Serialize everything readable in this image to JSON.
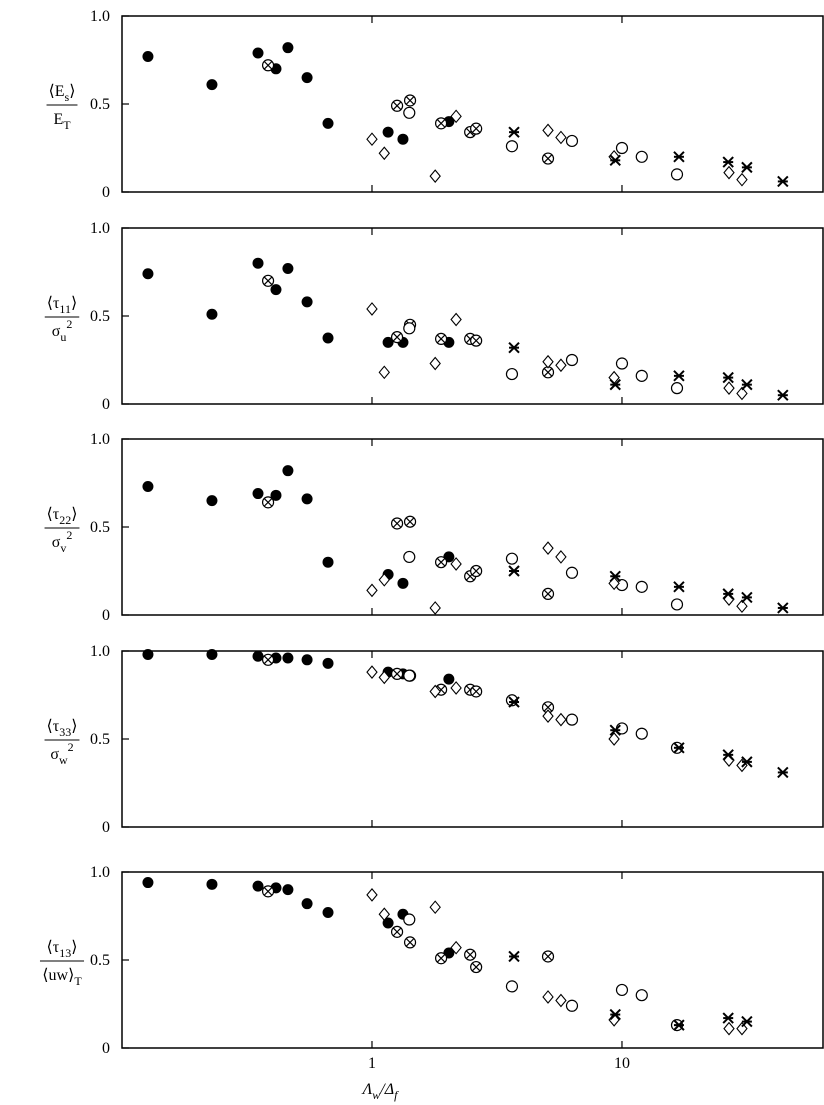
{
  "chart_data": [
    {
      "type": "scatter",
      "ylabel": {
        "numerator": [
          {
            "t": "⟨E"
          },
          {
            "t": "s",
            "sub": true
          },
          {
            "t": "⟩"
          }
        ],
        "denominator": [
          {
            "t": "E"
          },
          {
            "t": "T",
            "sub": true
          }
        ]
      },
      "xlim": [
        0.1,
        63.7
      ],
      "xscale": "log",
      "ylim": [
        0,
        1
      ],
      "yticks": [
        0,
        0.5,
        {
          "value": 1,
          "label": "1.0"
        }
      ],
      "series": [
        {
          "marker": "filled-circle",
          "color": "#000000",
          "x": [
            0.127,
            0.229,
            0.35,
            0.413,
            0.461,
            0.55,
            0.667,
            1.16,
            1.33,
            2.03
          ],
          "values": [
            0.77,
            0.61,
            0.79,
            0.7,
            0.82,
            0.65,
            0.39,
            0.34,
            0.3,
            0.4
          ]
        },
        {
          "marker": "cross-circle",
          "color": "#000000",
          "x": [
            0.384,
            1.26,
            1.42,
            1.89,
            2.47,
            2.61,
            5.06
          ],
          "values": [
            0.72,
            0.49,
            0.52,
            0.39,
            0.34,
            0.36,
            0.19
          ]
        },
        {
          "marker": "open-circle",
          "color": "#000000",
          "x": [
            1.41,
            3.63,
            6.31,
            10,
            12,
            16.6
          ],
          "values": [
            0.45,
            0.26,
            0.29,
            0.25,
            0.2,
            0.1
          ]
        },
        {
          "marker": "diamond",
          "color": "#000000",
          "x": [
            1.0,
            1.12,
            1.79,
            2.17,
            5.06,
            5.7,
            9.3,
            26.8,
            30.2
          ],
          "values": [
            0.3,
            0.22,
            0.09,
            0.43,
            0.35,
            0.31,
            0.2,
            0.11,
            0.07
          ]
        },
        {
          "marker": "star",
          "color": "#000000",
          "x": [
            3.7,
            9.4,
            16.9,
            26.6,
            31.6,
            44
          ],
          "values": [
            0.34,
            0.18,
            0.2,
            0.17,
            0.14,
            0.06
          ]
        }
      ]
    },
    {
      "type": "scatter",
      "ylabel": {
        "numerator": [
          {
            "t": "⟨τ"
          },
          {
            "t": "11",
            "sub": true
          },
          {
            "t": "⟩"
          }
        ],
        "denominator": [
          {
            "t": "σ"
          },
          {
            "t": "u",
            "sub": true
          },
          {
            "t": "2",
            "sup": true
          }
        ]
      },
      "xlim": [
        0.1,
        63.7
      ],
      "xscale": "log",
      "ylim": [
        0,
        1
      ],
      "yticks": [
        0,
        0.5,
        {
          "value": 1,
          "label": "1.0"
        }
      ],
      "series": [
        {
          "marker": "filled-circle",
          "color": "#000000",
          "x": [
            0.127,
            0.229,
            0.35,
            0.413,
            0.461,
            0.55,
            0.667,
            1.16,
            1.33,
            2.03
          ],
          "values": [
            0.74,
            0.51,
            0.8,
            0.65,
            0.77,
            0.58,
            0.375,
            0.35,
            0.35,
            0.35
          ]
        },
        {
          "marker": "cross-circle",
          "color": "#000000",
          "x": [
            0.384,
            1.26,
            1.42,
            1.89,
            2.47,
            2.61,
            5.06
          ],
          "values": [
            0.7,
            0.38,
            0.45,
            0.37,
            0.37,
            0.36,
            0.18
          ]
        },
        {
          "marker": "open-circle",
          "color": "#000000",
          "x": [
            1.41,
            3.63,
            6.31,
            10,
            12,
            16.6
          ],
          "values": [
            0.43,
            0.17,
            0.25,
            0.23,
            0.16,
            0.09
          ]
        },
        {
          "marker": "diamond",
          "color": "#000000",
          "x": [
            1.0,
            1.12,
            1.79,
            2.17,
            5.06,
            5.7,
            9.3,
            26.8,
            30.2
          ],
          "values": [
            0.54,
            0.18,
            0.23,
            0.48,
            0.24,
            0.22,
            0.15,
            0.09,
            0.06
          ]
        },
        {
          "marker": "star",
          "color": "#000000",
          "x": [
            3.7,
            9.4,
            16.9,
            26.6,
            31.6,
            44
          ],
          "values": [
            0.32,
            0.11,
            0.16,
            0.15,
            0.11,
            0.05
          ]
        }
      ]
    },
    {
      "type": "scatter",
      "ylabel": {
        "numerator": [
          {
            "t": "⟨τ"
          },
          {
            "t": "22",
            "sub": true
          },
          {
            "t": "⟩"
          }
        ],
        "denominator": [
          {
            "t": "σ"
          },
          {
            "t": "v",
            "sub": true
          },
          {
            "t": "2",
            "sup": true
          }
        ]
      },
      "xlim": [
        0.1,
        63.7
      ],
      "xscale": "log",
      "ylim": [
        0,
        1
      ],
      "yticks": [
        0,
        0.5,
        {
          "value": 1,
          "label": "1.0"
        }
      ],
      "series": [
        {
          "marker": "filled-circle",
          "color": "#000000",
          "x": [
            0.127,
            0.229,
            0.35,
            0.413,
            0.461,
            0.55,
            0.667,
            1.16,
            1.33,
            2.03
          ],
          "values": [
            0.73,
            0.65,
            0.69,
            0.68,
            0.82,
            0.66,
            0.3,
            0.23,
            0.18,
            0.33
          ]
        },
        {
          "marker": "cross-circle",
          "color": "#000000",
          "x": [
            0.384,
            1.26,
            1.42,
            1.89,
            2.47,
            2.61,
            5.06
          ],
          "values": [
            0.64,
            0.52,
            0.53,
            0.3,
            0.22,
            0.25,
            0.12
          ]
        },
        {
          "marker": "open-circle",
          "color": "#000000",
          "x": [
            1.41,
            3.63,
            6.31,
            10,
            12,
            16.6
          ],
          "values": [
            0.33,
            0.32,
            0.24,
            0.17,
            0.16,
            0.06
          ]
        },
        {
          "marker": "diamond",
          "color": "#000000",
          "x": [
            1.0,
            1.12,
            1.79,
            2.17,
            5.06,
            5.7,
            9.3,
            26.8,
            30.2
          ],
          "values": [
            0.14,
            0.2,
            0.04,
            0.29,
            0.38,
            0.33,
            0.18,
            0.09,
            0.05
          ]
        },
        {
          "marker": "star",
          "color": "#000000",
          "x": [
            3.7,
            9.4,
            16.9,
            26.6,
            31.6,
            44
          ],
          "values": [
            0.25,
            0.22,
            0.16,
            0.12,
            0.1,
            0.04
          ]
        }
      ]
    },
    {
      "type": "scatter",
      "ylabel": {
        "numerator": [
          {
            "t": "⟨τ"
          },
          {
            "t": "33",
            "sub": true
          },
          {
            "t": "⟩"
          }
        ],
        "denominator": [
          {
            "t": "σ"
          },
          {
            "t": "w",
            "sub": true
          },
          {
            "t": "2",
            "sup": true
          }
        ]
      },
      "xlim": [
        0.1,
        63.7
      ],
      "xscale": "log",
      "ylim": [
        0,
        1
      ],
      "yticks": [
        0,
        0.5,
        {
          "value": 1,
          "label": "1.0"
        }
      ],
      "series": [
        {
          "marker": "filled-circle",
          "color": "#000000",
          "x": [
            0.127,
            0.229,
            0.35,
            0.413,
            0.461,
            0.55,
            0.667,
            1.16,
            1.33,
            2.03
          ],
          "values": [
            0.98,
            0.98,
            0.97,
            0.96,
            0.96,
            0.95,
            0.93,
            0.88,
            0.87,
            0.84
          ]
        },
        {
          "marker": "cross-circle",
          "color": "#000000",
          "x": [
            0.384,
            1.26,
            1.42,
            1.89,
            2.47,
            2.61,
            5.06
          ],
          "values": [
            0.95,
            0.87,
            0.86,
            0.78,
            0.78,
            0.77,
            0.68
          ]
        },
        {
          "marker": "open-circle",
          "color": "#000000",
          "x": [
            1.41,
            3.63,
            6.31,
            10,
            12,
            16.6
          ],
          "values": [
            0.86,
            0.72,
            0.61,
            0.56,
            0.53,
            0.45
          ]
        },
        {
          "marker": "diamond",
          "color": "#000000",
          "x": [
            1.0,
            1.12,
            1.79,
            2.17,
            5.06,
            5.7,
            9.3,
            26.8,
            30.2
          ],
          "values": [
            0.88,
            0.85,
            0.77,
            0.79,
            0.63,
            0.61,
            0.5,
            0.38,
            0.35
          ]
        },
        {
          "marker": "star",
          "color": "#000000",
          "x": [
            3.7,
            9.4,
            16.9,
            26.6,
            31.6,
            44
          ],
          "values": [
            0.71,
            0.55,
            0.45,
            0.41,
            0.37,
            0.31
          ]
        }
      ]
    },
    {
      "type": "scatter",
      "ylabel": {
        "numerator": [
          {
            "t": "⟨τ"
          },
          {
            "t": "13",
            "sub": true
          },
          {
            "t": "⟩"
          }
        ],
        "denominator": [
          {
            "t": "⟨uw⟩"
          },
          {
            "t": "T",
            "sub": true
          }
        ]
      },
      "xlabel": [
        {
          "t": "Λ"
        },
        {
          "t": "w",
          "sub": true
        },
        {
          "t": "/Δ"
        },
        {
          "t": "f",
          "sub": true
        }
      ],
      "xlim": [
        0.1,
        63.7
      ],
      "xscale": "log",
      "xticks": [
        1,
        10
      ],
      "ylim": [
        0,
        1
      ],
      "yticks": [
        0,
        0.5,
        {
          "value": 1,
          "label": "1.0"
        }
      ],
      "series": [
        {
          "marker": "filled-circle",
          "color": "#000000",
          "x": [
            0.127,
            0.229,
            0.35,
            0.413,
            0.461,
            0.55,
            0.667,
            1.16,
            1.33,
            2.03
          ],
          "values": [
            0.94,
            0.93,
            0.92,
            0.91,
            0.9,
            0.82,
            0.77,
            0.71,
            0.76,
            0.54
          ]
        },
        {
          "marker": "cross-circle",
          "color": "#000000",
          "x": [
            0.384,
            1.26,
            1.42,
            1.89,
            2.47,
            2.61,
            5.06
          ],
          "values": [
            0.89,
            0.66,
            0.6,
            0.51,
            0.53,
            0.46,
            0.52
          ]
        },
        {
          "marker": "open-circle",
          "color": "#000000",
          "x": [
            1.41,
            3.63,
            6.31,
            10,
            12,
            16.6
          ],
          "values": [
            0.73,
            0.35,
            0.24,
            0.33,
            0.3,
            0.13
          ]
        },
        {
          "marker": "diamond",
          "color": "#000000",
          "x": [
            1.0,
            1.12,
            1.79,
            2.17,
            5.06,
            5.7,
            9.3,
            26.8,
            30.2
          ],
          "values": [
            0.87,
            0.76,
            0.8,
            0.57,
            0.29,
            0.27,
            0.16,
            0.11,
            0.11
          ]
        },
        {
          "marker": "star",
          "color": "#000000",
          "x": [
            3.7,
            9.4,
            16.9,
            26.6,
            31.6,
            44
          ],
          "values": [
            0.52,
            0.19,
            0.13,
            0.17,
            0.15,
            null
          ]
        }
      ]
    }
  ]
}
